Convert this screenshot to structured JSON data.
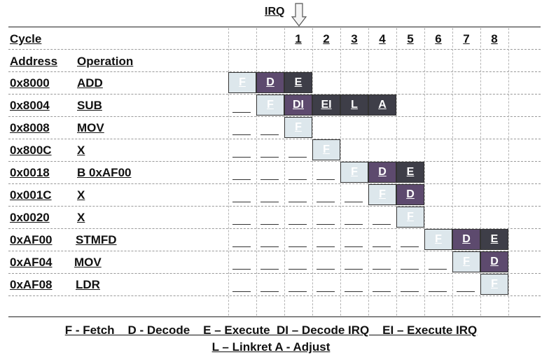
{
  "irq_label": "IRQ",
  "headers": {
    "cycle": "Cycle",
    "address": "Address",
    "operation": "Operation"
  },
  "cycles": [
    "1",
    "2",
    "3",
    "4",
    "5",
    "6",
    "7",
    "8"
  ],
  "rows": [
    {
      "address": "0x8000",
      "operation": "ADD",
      "stages": [
        "F",
        "D",
        "E"
      ],
      "stage_types": [
        "fetch",
        "decode",
        "execute"
      ]
    },
    {
      "address": "0x8004",
      "operation": "SUB",
      "stages": [
        "F",
        "DI",
        "EI",
        "L",
        "A"
      ],
      "stage_types": [
        "fetch",
        "decode",
        "execute",
        "execute",
        "execute"
      ]
    },
    {
      "address": "0x8008",
      "operation": "MOV",
      "stages": [
        "F"
      ],
      "stage_types": [
        "fetch"
      ]
    },
    {
      "address": "0x800C",
      "operation": "X",
      "stages": [
        "F"
      ],
      "stage_types": [
        "fetch"
      ]
    },
    {
      "address": "0x0018",
      "operation": "B 0xAF00",
      "stages": [
        "F",
        "D",
        "E"
      ],
      "stage_types": [
        "fetch",
        "decode",
        "execute"
      ]
    },
    {
      "address": "0x001C",
      "operation": "X",
      "stages": [
        "F",
        "D"
      ],
      "stage_types": [
        "fetch",
        "decode"
      ]
    },
    {
      "address": "0x0020",
      "operation": "X",
      "stages": [
        "F"
      ],
      "stage_types": [
        "fetch"
      ]
    },
    {
      "address": "0xAF00",
      "operation": "STMFD",
      "stages": [
        "F",
        "D",
        "E"
      ],
      "stage_types": [
        "fetch",
        "decode",
        "execute"
      ]
    },
    {
      "address": "0xAF04",
      "operation": "MOV",
      "stages": [
        "F",
        "D"
      ],
      "stage_types": [
        "fetch",
        "decode"
      ]
    },
    {
      "address": "0xAF08",
      "operation": "LDR",
      "stages": [
        "F"
      ],
      "stage_types": [
        "fetch"
      ]
    }
  ],
  "legend": {
    "line1": "F - Fetch    D - Decode    E – Execute  DI – Decode IRQ    EI – Execute IRQ",
    "line2": "L – Linkret A - Adjust"
  },
  "colors": {
    "fetch": "#dde7ec",
    "decode": "#5d4a6e",
    "execute": "#3e3e48"
  }
}
